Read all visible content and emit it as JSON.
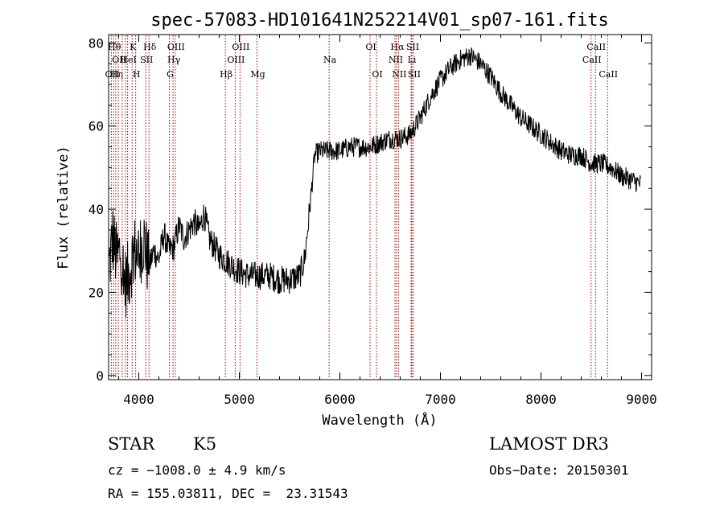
{
  "chart_data": {
    "type": "line",
    "title": "spec-57083-HD101641N252214V01_sp07-161.fits",
    "xlabel": "Wavelength (Å)",
    "ylabel": "Flux (relative)",
    "xlim": [
      3700,
      9100
    ],
    "ylim": [
      -1,
      82
    ],
    "xticks": [
      "4000",
      "5000",
      "6000",
      "7000",
      "8000",
      "9000"
    ],
    "yticks": [
      "0",
      "20",
      "40",
      "60",
      "80"
    ],
    "series_color": "#000000",
    "line_marker_color": "#aa0000",
    "spectrum_knots": [
      [
        3700,
        25
      ],
      [
        3740,
        33
      ],
      [
        3780,
        28
      ],
      [
        3820,
        30
      ],
      [
        3860,
        22
      ],
      [
        3900,
        24
      ],
      [
        3950,
        30
      ],
      [
        4000,
        29
      ],
      [
        4050,
        33
      ],
      [
        4100,
        26
      ],
      [
        4150,
        30
      ],
      [
        4200,
        28
      ],
      [
        4250,
        34
      ],
      [
        4300,
        30
      ],
      [
        4350,
        31
      ],
      [
        4400,
        36
      ],
      [
        4450,
        33
      ],
      [
        4500,
        35
      ],
      [
        4550,
        37
      ],
      [
        4600,
        35
      ],
      [
        4650,
        39
      ],
      [
        4700,
        33
      ],
      [
        4750,
        31
      ],
      [
        4800,
        29
      ],
      [
        4850,
        28
      ],
      [
        4900,
        27
      ],
      [
        4950,
        26
      ],
      [
        5000,
        25
      ],
      [
        5100,
        24
      ],
      [
        5200,
        24
      ],
      [
        5300,
        24
      ],
      [
        5400,
        23
      ],
      [
        5500,
        23
      ],
      [
        5600,
        24
      ],
      [
        5650,
        28
      ],
      [
        5700,
        40
      ],
      [
        5750,
        53
      ],
      [
        5800,
        54
      ],
      [
        5900,
        54
      ],
      [
        6000,
        54
      ],
      [
        6100,
        55
      ],
      [
        6200,
        55
      ],
      [
        6300,
        55
      ],
      [
        6400,
        56
      ],
      [
        6500,
        57
      ],
      [
        6600,
        57
      ],
      [
        6700,
        58
      ],
      [
        6800,
        62
      ],
      [
        6900,
        67
      ],
      [
        7000,
        71
      ],
      [
        7100,
        74
      ],
      [
        7200,
        76
      ],
      [
        7300,
        77
      ],
      [
        7400,
        75
      ],
      [
        7500,
        72
      ],
      [
        7600,
        68
      ],
      [
        7700,
        65
      ],
      [
        7800,
        62
      ],
      [
        7900,
        60
      ],
      [
        8000,
        58
      ],
      [
        8100,
        56
      ],
      [
        8200,
        54
      ],
      [
        8300,
        53
      ],
      [
        8400,
        53
      ],
      [
        8500,
        51
      ],
      [
        8600,
        51
      ],
      [
        8700,
        50
      ],
      [
        8800,
        48
      ],
      [
        8900,
        47
      ],
      [
        9000,
        46
      ]
    ],
    "line_markers": [
      {
        "wave": 3727,
        "label": "OII",
        "row": 3
      },
      {
        "wave": 3750,
        "label": "Hθ",
        "row": 1
      },
      {
        "wave": 3771,
        "label": "Hη",
        "row": 3
      },
      {
        "wave": 3797,
        "label": "OII",
        "row": 2
      },
      {
        "wave": 3835,
        "label": "",
        "row": 2
      },
      {
        "wave": 3869,
        "label": "",
        "row": 2
      },
      {
        "wave": 3889,
        "label": "HeI",
        "row": 2
      },
      {
        "wave": 3934,
        "label": "K",
        "row": 1
      },
      {
        "wave": 3969,
        "label": "H",
        "row": 3
      },
      {
        "wave": 4070,
        "label": "SII",
        "row": 2
      },
      {
        "wave": 4102,
        "label": "Hδ",
        "row": 1
      },
      {
        "wave": 4304,
        "label": "G",
        "row": 3
      },
      {
        "wave": 4341,
        "label": "Hγ",
        "row": 2
      },
      {
        "wave": 4363,
        "label": "OIII",
        "row": 1
      },
      {
        "wave": 4861,
        "label": "Hβ",
        "row": 3
      },
      {
        "wave": 4959,
        "label": "OIII",
        "row": 2
      },
      {
        "wave": 5007,
        "label": "OIII",
        "row": 1
      },
      {
        "wave": 5176,
        "label": "Mg",
        "row": 3
      },
      {
        "wave": 5893,
        "label": "Na",
        "row": 2
      },
      {
        "wave": 6300,
        "label": "OI",
        "row": 1
      },
      {
        "wave": 6364,
        "label": "OI",
        "row": 3
      },
      {
        "wave": 6548,
        "label": "NII",
        "row": 2
      },
      {
        "wave": 6563,
        "label": "Hα",
        "row": 1
      },
      {
        "wave": 6583,
        "label": "NII",
        "row": 3
      },
      {
        "wave": 6708,
        "label": "Li",
        "row": 2
      },
      {
        "wave": 6716,
        "label": "SII",
        "row": 1
      },
      {
        "wave": 6731,
        "label": "SII",
        "row": 3
      },
      {
        "wave": 8498,
        "label": "CaII",
        "row": 2
      },
      {
        "wave": 8542,
        "label": "CaII",
        "row": 1
      },
      {
        "wave": 8662,
        "label": "CaII",
        "row": 3
      }
    ]
  },
  "info": {
    "object_class": "STAR",
    "subclass": "K5",
    "survey": "LAMOST DR3",
    "cz": "cz = −1008.0 ± 4.9 km/s",
    "obs_date": "Obs−Date: 20150301",
    "coords": "RA = 155.03811, DEC =  23.31543"
  }
}
